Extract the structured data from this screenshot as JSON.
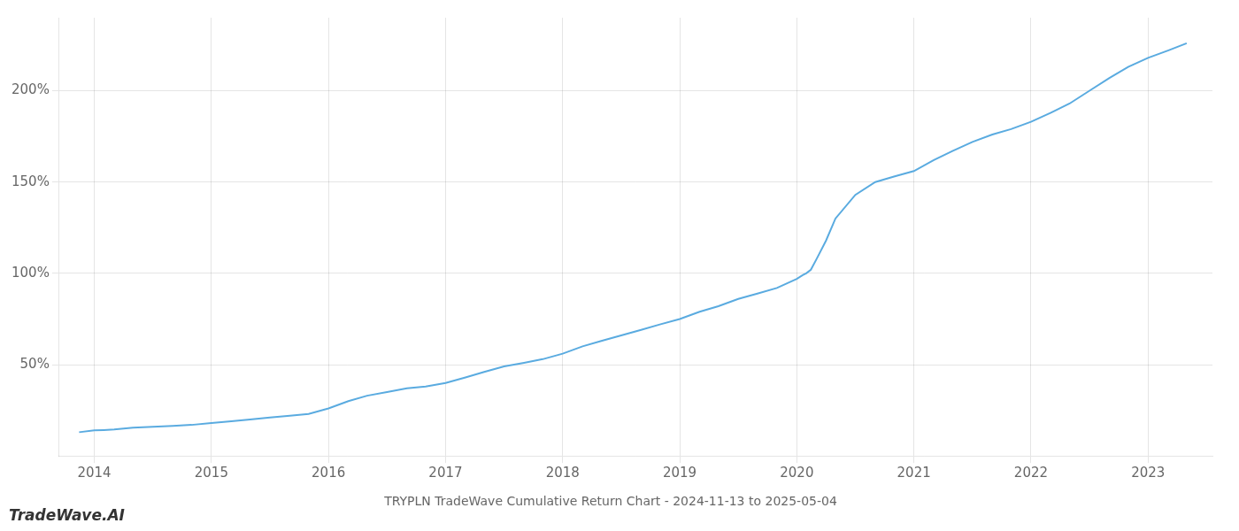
{
  "chart_data": {
    "type": "line",
    "title": "TRYPLN TradeWave Cumulative Return Chart - 2024-11-13 to 2025-05-04",
    "annotations": [
      "TradeWave.AI"
    ],
    "x": [
      2013.87,
      2014.0,
      2014.08,
      2014.17,
      2014.25,
      2014.33,
      2014.5,
      2014.67,
      2014.83,
      2015.0,
      2015.17,
      2015.33,
      2015.5,
      2015.67,
      2015.83,
      2016.0,
      2016.17,
      2016.33,
      2016.5,
      2016.67,
      2016.83,
      2017.0,
      2017.17,
      2017.33,
      2017.5,
      2017.67,
      2017.83,
      2018.0,
      2018.17,
      2018.33,
      2018.5,
      2018.67,
      2018.83,
      2019.0,
      2019.17,
      2019.33,
      2019.5,
      2019.67,
      2019.83,
      2020.0,
      2020.05,
      2020.08,
      2020.12,
      2020.17,
      2020.25,
      2020.33,
      2020.5,
      2020.67,
      2020.83,
      2021.0,
      2021.17,
      2021.33,
      2021.5,
      2021.67,
      2021.83,
      2022.0,
      2022.17,
      2022.33,
      2022.5,
      2022.67,
      2022.83,
      2023.0,
      2023.17,
      2023.33
    ],
    "values": [
      13,
      14,
      14.2,
      14.5,
      15,
      15.5,
      16,
      16.5,
      17,
      18,
      19,
      20,
      21,
      22,
      23,
      26,
      30,
      33,
      35,
      37,
      38,
      40,
      43,
      46,
      49,
      51,
      53,
      56,
      60,
      63,
      66,
      69,
      72,
      75,
      79,
      82,
      86,
      89,
      92,
      97,
      99,
      100,
      102,
      108,
      118,
      130,
      143,
      150,
      153,
      156,
      162,
      167,
      172,
      176,
      179,
      183,
      188,
      193,
      200,
      207,
      213,
      218,
      222,
      226
    ],
    "color": "#5aabe0",
    "xlim": [
      2013.7,
      2023.55
    ],
    "xticks": [
      2014,
      2015,
      2016,
      2017,
      2018,
      2019,
      2020,
      2021,
      2022,
      2023
    ],
    "ylim": [
      0,
      240
    ],
    "yticks": [
      {
        "value": 50,
        "label": "50%"
      },
      {
        "value": 100,
        "label": "100%"
      },
      {
        "value": 150,
        "label": "150%"
      },
      {
        "value": 200,
        "label": "200%"
      }
    ],
    "grid": true
  }
}
